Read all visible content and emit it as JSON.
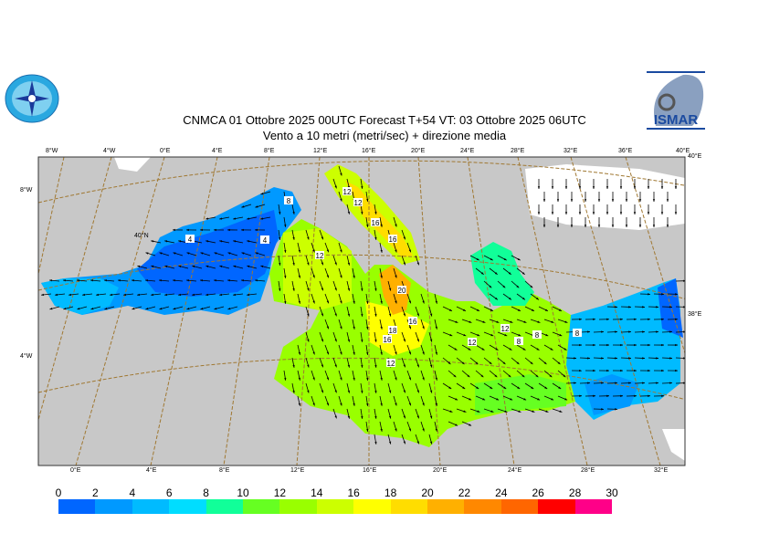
{
  "header": {
    "title_line1": "CNMCA 01  Ottobre  2025 00UTC Forecast T+54 VT: 03  Ottobre  2025 06UTC",
    "title_line2": "Vento a 10 metri (metri/sec) + direzione media"
  },
  "logos": {
    "left": "compass-rose-emblem",
    "right": "ISMAR"
  },
  "map": {
    "top_lon_labels": [
      "8°W",
      "4°W",
      "0°E",
      "4°E",
      "8°E",
      "12°E",
      "16°E",
      "20°E",
      "24°E",
      "28°E",
      "32°E",
      "36°E",
      "40°E"
    ],
    "bottom_lon_labels": [
      "0°E",
      "4°E",
      "8°E",
      "12°E",
      "16°E",
      "20°E",
      "24°E",
      "28°E",
      "32°E"
    ],
    "left_labels": [
      "8°W",
      "4°W"
    ],
    "right_labels": [
      "40°E",
      "38°E"
    ],
    "lat_label": "40°N",
    "contour_labels": [
      "4",
      "4",
      "8",
      "12",
      "12",
      "12",
      "16",
      "16",
      "20",
      "16",
      "18",
      "16",
      "12",
      "12",
      "12",
      "8",
      "8",
      "8"
    ],
    "colors": {
      "land": "#c8c8c8",
      "graticule": "#a07832"
    }
  },
  "colorbar": {
    "ticks": [
      "0",
      "2",
      "4",
      "6",
      "8",
      "10",
      "12",
      "14",
      "16",
      "18",
      "20",
      "22",
      "24",
      "26",
      "28",
      "30"
    ],
    "colors": [
      "#0066ff",
      "#0099ff",
      "#00bbff",
      "#00ddff",
      "#11ff99",
      "#66ff22",
      "#99ff00",
      "#ccff00",
      "#ffff00",
      "#ffdd00",
      "#ffb000",
      "#ff8800",
      "#ff6600",
      "#ff0000",
      "#ff0088"
    ]
  }
}
